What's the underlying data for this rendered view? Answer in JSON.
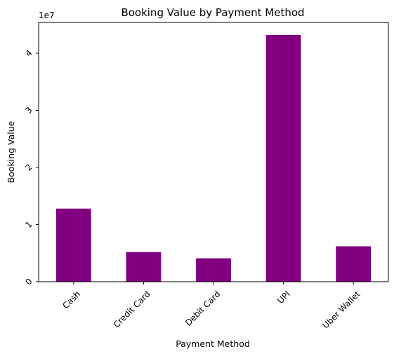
{
  "chart_data": {
    "type": "bar",
    "title": "Booking Value by Payment Method",
    "xlabel": "Payment Method",
    "ylabel": "Booking Value",
    "y_offset_label": "1e7",
    "categories": [
      "Cash",
      "Credit Card",
      "Debit Card",
      "UPI",
      "Uber Wallet"
    ],
    "values": [
      12800000,
      5200000,
      4100000,
      43200000,
      6200000
    ],
    "ylim": [
      0,
      45400000
    ],
    "yticks": [
      0,
      10000000,
      20000000,
      30000000,
      40000000
    ],
    "ytick_labels": [
      "0",
      "1",
      "2",
      "3",
      "4"
    ],
    "bar_color": "#800080",
    "grid": false,
    "legend": "none",
    "tick_label_rotation": "45 degrees"
  }
}
